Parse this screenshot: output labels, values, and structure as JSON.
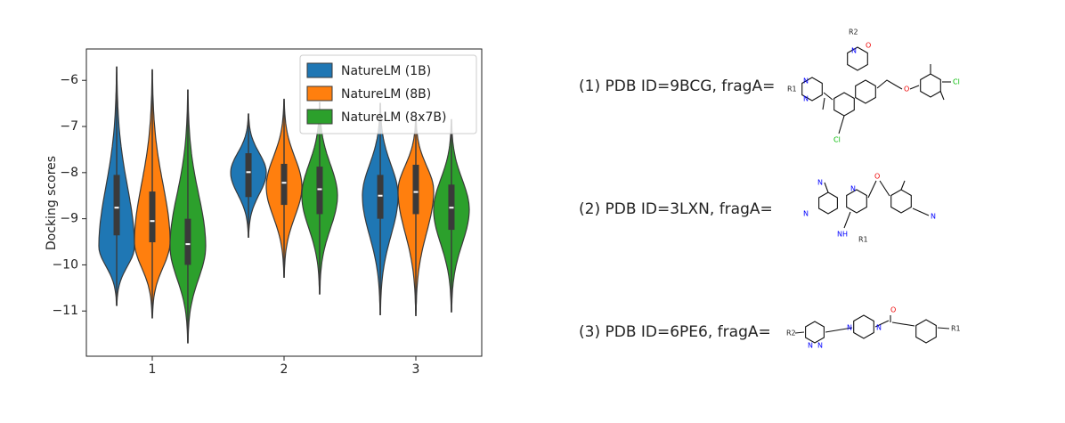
{
  "chart_data": {
    "type": "violin",
    "ylabel": "Docking scores",
    "categories": [
      "1",
      "2",
      "3"
    ],
    "ylim": [
      -11.98,
      -5.32
    ],
    "yticks": [
      {
        "value": -6,
        "label": "−6"
      },
      {
        "value": -7,
        "label": "−7"
      },
      {
        "value": -8,
        "label": "−8"
      },
      {
        "value": -9,
        "label": "−9"
      },
      {
        "value": -10,
        "label": "−10"
      },
      {
        "value": -11,
        "label": "−11"
      }
    ],
    "legend": "upper right",
    "series": [
      {
        "name": "NatureLM (1B)",
        "color": "#1f77b4",
        "values": [
          {
            "min": -10.88,
            "q1": -9.36,
            "median": -8.76,
            "q3": -8.05,
            "max": -5.71,
            "peak": -9.6
          },
          {
            "min": -9.4,
            "q1": -8.53,
            "median": -7.99,
            "q3": -7.58,
            "max": -6.73,
            "peak": -8.0
          },
          {
            "min": -11.08,
            "q1": -9.0,
            "median": -8.5,
            "q3": -8.05,
            "max": -6.5,
            "peak": -8.5
          }
        ]
      },
      {
        "name": "NatureLM (8B)",
        "color": "#ff7f0e",
        "values": [
          {
            "min": -11.15,
            "q1": -9.51,
            "median": -9.05,
            "q3": -8.41,
            "max": -5.77,
            "peak": -9.5
          },
          {
            "min": -10.27,
            "q1": -8.7,
            "median": -8.22,
            "q3": -7.81,
            "max": -6.41,
            "peak": -8.3
          },
          {
            "min": -11.1,
            "q1": -8.9,
            "median": -8.42,
            "q3": -7.83,
            "max": -6.77,
            "peak": -8.4
          }
        ]
      },
      {
        "name": "NatureLM (8x7B)",
        "color": "#2ca02c",
        "values": [
          {
            "min": -11.69,
            "q1": -10.0,
            "median": -9.55,
            "q3": -9.0,
            "max": -6.21,
            "peak": -9.6
          },
          {
            "min": -10.63,
            "q1": -8.9,
            "median": -8.36,
            "q3": -7.87,
            "max": -6.48,
            "peak": -8.5
          },
          {
            "min": -11.02,
            "q1": -9.24,
            "median": -8.76,
            "q3": -8.26,
            "max": -6.85,
            "peak": -8.8
          }
        ]
      }
    ]
  },
  "fragments": [
    {
      "label": "(1) PDB ID=9BCG, fragA=",
      "atoms": [
        "R2",
        "N",
        "O",
        "N",
        "N",
        "R1",
        "Cl",
        "O",
        "Cl"
      ]
    },
    {
      "label": "(2) PDB ID=3LXN, fragA=",
      "atoms": [
        "N",
        "N",
        "N",
        "O",
        "N",
        "NH",
        "R1"
      ]
    },
    {
      "label": "(3) PDB ID=6PE6, fragA=",
      "atoms": [
        "R2",
        "N",
        "N",
        "N",
        "N",
        "O",
        "R1"
      ]
    }
  ]
}
